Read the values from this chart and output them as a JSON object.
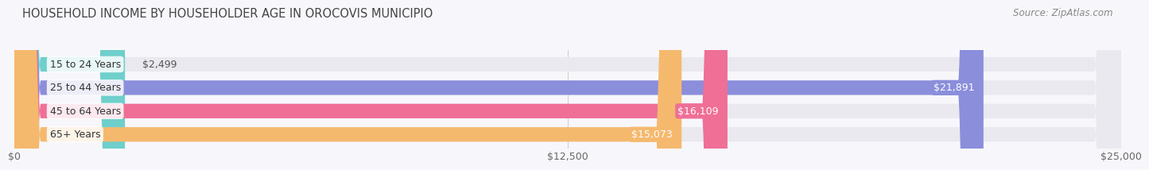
{
  "title": "HOUSEHOLD INCOME BY HOUSEHOLDER AGE IN OROCOVIS MUNICIPIO",
  "source": "Source: ZipAtlas.com",
  "categories": [
    "15 to 24 Years",
    "25 to 44 Years",
    "45 to 64 Years",
    "65+ Years"
  ],
  "values": [
    2499,
    21891,
    16109,
    15073
  ],
  "bar_colors": [
    "#6ecfcb",
    "#8b8edb",
    "#ef6f96",
    "#f5b96e"
  ],
  "bar_bg_color": "#e9e9ef",
  "value_labels": [
    "$2,499",
    "$21,891",
    "$16,109",
    "$15,073"
  ],
  "x_ticks": [
    0,
    12500,
    25000
  ],
  "x_tick_labels": [
    "$0",
    "$12,500",
    "$25,000"
  ],
  "xlim": [
    0,
    25000
  ],
  "title_fontsize": 10.5,
  "source_fontsize": 8.5,
  "label_fontsize": 9,
  "value_fontsize": 9,
  "tick_fontsize": 9,
  "background_color": "#f7f7fb",
  "bar_height": 0.62,
  "label_pill_color": "#ffffff",
  "label_pill_alpha": 0.85
}
